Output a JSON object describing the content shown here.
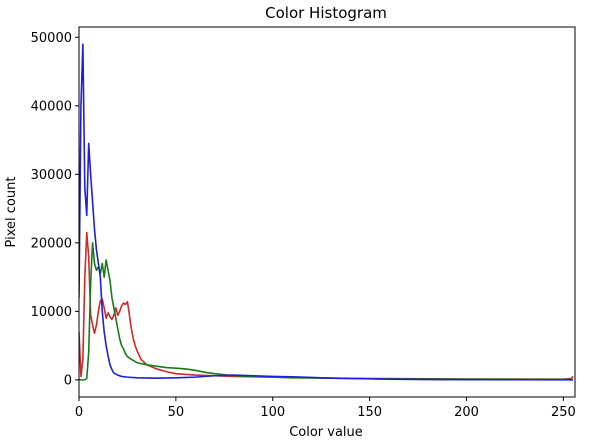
{
  "chart_data": {
    "type": "line",
    "title": "Color Histogram",
    "xlabel": "Color value",
    "ylabel": "Pixel count",
    "xlim": [
      0,
      256
    ],
    "ylim": [
      -2500,
      51500
    ],
    "x_ticks": [
      0,
      50,
      100,
      150,
      200,
      250
    ],
    "y_ticks": [
      0,
      10000,
      20000,
      30000,
      40000,
      50000
    ],
    "x_tick_labels": [
      "0",
      "50",
      "100",
      "150",
      "200",
      "250"
    ],
    "y_tick_labels": [
      "0",
      "10000",
      "20000",
      "30000",
      "40000",
      "50000"
    ],
    "grid": false,
    "legend": "none",
    "series": [
      {
        "color": "#d62728",
        "points": [
          [
            0,
            7000
          ],
          [
            1,
            500
          ],
          [
            2,
            3000
          ],
          [
            3,
            15000
          ],
          [
            4,
            21500
          ],
          [
            5,
            18000
          ],
          [
            6,
            9500
          ],
          [
            7,
            8000
          ],
          [
            8,
            6800
          ],
          [
            9,
            8000
          ],
          [
            10,
            10000
          ],
          [
            11,
            11500
          ],
          [
            12,
            11800
          ],
          [
            13,
            10500
          ],
          [
            14,
            9000
          ],
          [
            15,
            9800
          ],
          [
            16,
            9200
          ],
          [
            17,
            8800
          ],
          [
            18,
            9500
          ],
          [
            19,
            10500
          ],
          [
            20,
            9400
          ],
          [
            21,
            10000
          ],
          [
            22,
            10800
          ],
          [
            23,
            11200
          ],
          [
            24,
            11000
          ],
          [
            25,
            11400
          ],
          [
            26,
            9500
          ],
          [
            27,
            7500
          ],
          [
            28,
            6000
          ],
          [
            29,
            5000
          ],
          [
            30,
            4200
          ],
          [
            32,
            3000
          ],
          [
            35,
            2200
          ],
          [
            40,
            1600
          ],
          [
            45,
            1200
          ],
          [
            50,
            900
          ],
          [
            60,
            700
          ],
          [
            70,
            600
          ],
          [
            80,
            500
          ],
          [
            100,
            400
          ],
          [
            120,
            300
          ],
          [
            150,
            200
          ],
          [
            200,
            120
          ],
          [
            250,
            100
          ],
          [
            254,
            200
          ],
          [
            255,
            500
          ]
        ]
      },
      {
        "color": "#1a7a1a",
        "points": [
          [
            0,
            0
          ],
          [
            1,
            0
          ],
          [
            2,
            0
          ],
          [
            3,
            0
          ],
          [
            4,
            200
          ],
          [
            5,
            4000
          ],
          [
            6,
            14000
          ],
          [
            7,
            20000
          ],
          [
            8,
            17000
          ],
          [
            9,
            16000
          ],
          [
            10,
            16500
          ],
          [
            11,
            15500
          ],
          [
            12,
            17000
          ],
          [
            13,
            15000
          ],
          [
            14,
            17500
          ],
          [
            15,
            16000
          ],
          [
            16,
            14500
          ],
          [
            17,
            12000
          ],
          [
            18,
            10500
          ],
          [
            19,
            9000
          ],
          [
            20,
            7500
          ],
          [
            21,
            6000
          ],
          [
            22,
            5000
          ],
          [
            23,
            4500
          ],
          [
            24,
            3800
          ],
          [
            25,
            3400
          ],
          [
            27,
            3000
          ],
          [
            30,
            2500
          ],
          [
            35,
            2200
          ],
          [
            40,
            2000
          ],
          [
            45,
            1800
          ],
          [
            50,
            1700
          ],
          [
            55,
            1600
          ],
          [
            60,
            1400
          ],
          [
            65,
            1100
          ],
          [
            70,
            900
          ],
          [
            75,
            750
          ],
          [
            80,
            600
          ],
          [
            90,
            500
          ],
          [
            100,
            400
          ],
          [
            110,
            300
          ],
          [
            120,
            280
          ],
          [
            140,
            200
          ],
          [
            160,
            150
          ],
          [
            200,
            100
          ],
          [
            255,
            50
          ]
        ]
      },
      {
        "color": "#1f1fd9",
        "points": [
          [
            0,
            12000
          ],
          [
            1,
            40000
          ],
          [
            2,
            49000
          ],
          [
            3,
            28000
          ],
          [
            4,
            24000
          ],
          [
            5,
            34500
          ],
          [
            6,
            30000
          ],
          [
            7,
            26000
          ],
          [
            8,
            22000
          ],
          [
            9,
            19000
          ],
          [
            10,
            17000
          ],
          [
            11,
            15000
          ],
          [
            12,
            10000
          ],
          [
            13,
            7000
          ],
          [
            14,
            5000
          ],
          [
            15,
            3500
          ],
          [
            16,
            2200
          ],
          [
            17,
            1500
          ],
          [
            18,
            1000
          ],
          [
            20,
            700
          ],
          [
            22,
            500
          ],
          [
            25,
            400
          ],
          [
            30,
            300
          ],
          [
            40,
            250
          ],
          [
            50,
            300
          ],
          [
            60,
            400
          ],
          [
            70,
            600
          ],
          [
            80,
            700
          ],
          [
            90,
            600
          ],
          [
            100,
            500
          ],
          [
            110,
            450
          ],
          [
            120,
            350
          ],
          [
            130,
            250
          ],
          [
            140,
            200
          ],
          [
            150,
            150
          ],
          [
            160,
            100
          ],
          [
            180,
            50
          ],
          [
            200,
            30
          ],
          [
            255,
            0
          ]
        ]
      }
    ]
  }
}
